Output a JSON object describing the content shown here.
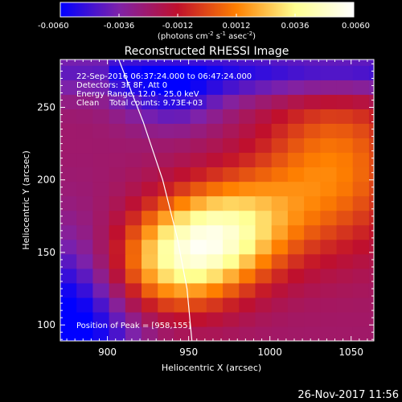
{
  "chart_data": {
    "type": "heatmap",
    "title": "Reconstructed RHESSI Image",
    "xlabel": "Heliocentric X (arcsec)",
    "ylabel": "Heliocentric Y (arcsec)",
    "xlim": [
      871,
      1064
    ],
    "ylim": [
      89,
      283
    ],
    "xticks": [
      900,
      950,
      1000,
      1050
    ],
    "yticks": [
      100,
      150,
      200,
      250
    ],
    "colorbar": {
      "min": -0.006,
      "max": 0.006,
      "ticks": [
        "-0.0060",
        "-0.0036",
        "-0.0012",
        "0.0012",
        "0.0036",
        "0.0060"
      ],
      "tick_values": [
        -0.006,
        -0.0036,
        -0.0012,
        0.0012,
        0.0036,
        0.006
      ],
      "unit_label_parts": [
        "(photons cm",
        "-2",
        " s",
        "-1",
        " asec",
        "-2",
        ")"
      ],
      "colors": [
        "#0000ff",
        "#7f22a8",
        "#c0102c",
        "#ff8000",
        "#ffff90",
        "#ffffff"
      ]
    },
    "peak": [
      958,
      155
    ],
    "peak_value": 0.0058,
    "limb_curve_points": [
      [
        907,
        283
      ],
      [
        922,
        240
      ],
      [
        934,
        200
      ],
      [
        943,
        160
      ],
      [
        949,
        125
      ],
      [
        952,
        89
      ]
    ],
    "annotations": {
      "time_range": "22-Sep-2016 06:37:24.000 to 06:47:24.000",
      "detectors": "Detectors: 3F 8F, Att 0",
      "energy": "Energy Range: 12.0 - 25.0 keV",
      "clean": "Clean    Total counts: 9.73E+03",
      "peak_label": "Position of Peak = [958,155]"
    },
    "footer_date": "26-Nov-2017 11:56"
  }
}
